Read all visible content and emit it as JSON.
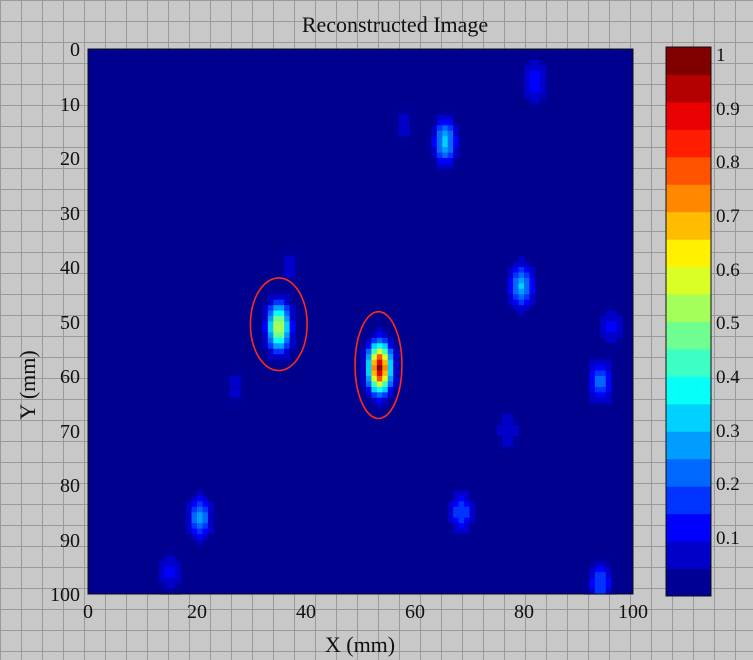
{
  "chart_data": {
    "type": "heatmap",
    "title": "Reconstructed Image",
    "xlabel": "X (mm)",
    "ylabel": "Y (mm)",
    "xlim": [
      0,
      100
    ],
    "ylim": [
      0,
      100
    ],
    "y_inverted": true,
    "x_ticks": [
      "0",
      "20",
      "40",
      "60",
      "80",
      "100"
    ],
    "y_ticks": [
      "0",
      "10",
      "20",
      "30",
      "40",
      "50",
      "60",
      "70",
      "80",
      "90",
      "100"
    ],
    "colorbar": {
      "range": [
        0,
        1
      ],
      "ticks": [
        "0.1",
        "0.2",
        "0.3",
        "0.4",
        "0.5",
        "0.6",
        "0.7",
        "0.8",
        "0.9",
        "1"
      ],
      "colormap": "jet"
    },
    "background_value": 0.02,
    "spots": [
      {
        "x": 35,
        "y": 51,
        "value": 0.55
      },
      {
        "x": 53.5,
        "y": 58.5,
        "value": 0.95
      },
      {
        "x": 65.5,
        "y": 17,
        "value": 0.32
      },
      {
        "x": 79.5,
        "y": 43.5,
        "value": 0.32
      },
      {
        "x": 20.5,
        "y": 86,
        "value": 0.28
      },
      {
        "x": 94,
        "y": 61,
        "value": 0.22
      },
      {
        "x": 68.5,
        "y": 85,
        "value": 0.2
      },
      {
        "x": 82,
        "y": 6,
        "value": 0.15
      },
      {
        "x": 94,
        "y": 98,
        "value": 0.2
      },
      {
        "x": 96,
        "y": 51,
        "value": 0.12
      },
      {
        "x": 15,
        "y": 96,
        "value": 0.12
      },
      {
        "x": 77,
        "y": 70,
        "value": 0.1
      },
      {
        "x": 58,
        "y": 14,
        "value": 0.08
      },
      {
        "x": 27,
        "y": 62,
        "value": 0.08
      },
      {
        "x": 37,
        "y": 40,
        "value": 0.08
      }
    ],
    "annotations": [
      {
        "shape": "ellipse",
        "color": "#ff2a1a",
        "cx": 35,
        "cy": 50.5,
        "rx": 5.2,
        "ry": 8.5
      },
      {
        "shape": "ellipse",
        "color": "#ff2a1a",
        "cx": 53.3,
        "cy": 58,
        "rx": 4.3,
        "ry": 9.8
      }
    ]
  }
}
